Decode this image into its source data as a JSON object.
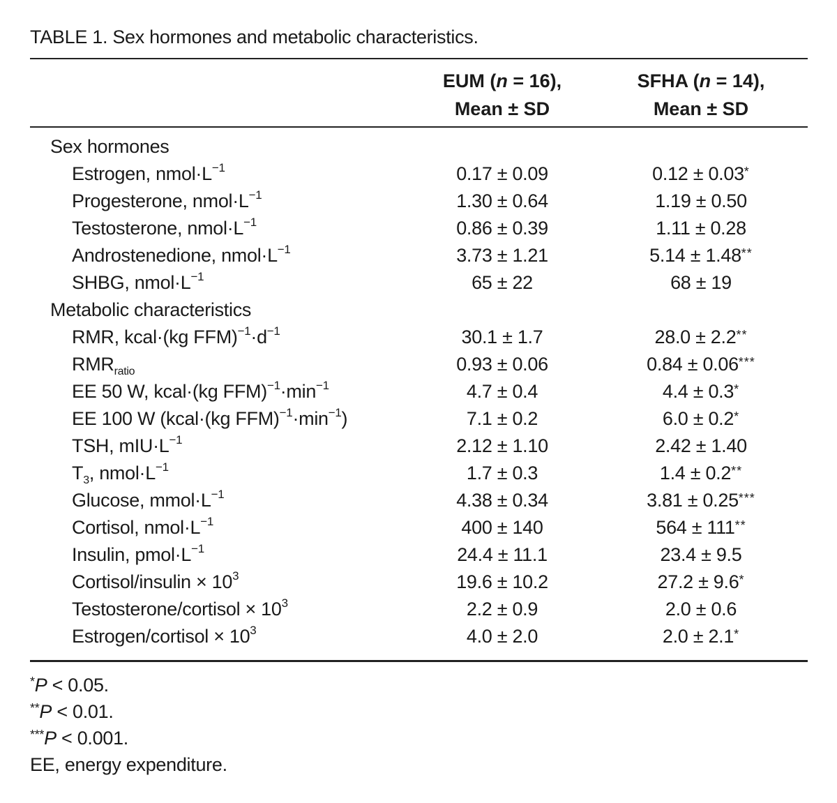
{
  "caption": "TABLE 1. Sex hormones and metabolic characteristics.",
  "columns": {
    "eum_line1_pre": "EUM (",
    "eum_n": "n",
    "eum_line1_post": " = 16),",
    "eum_line2": "Mean ± SD",
    "sfha_line1_pre": "SFHA (",
    "sfha_n": "n",
    "sfha_line1_post": " = 14),",
    "sfha_line2": "Mean ± SD"
  },
  "sections": {
    "sex_hormones": "Sex hormones",
    "metabolic": "Metabolic characteristics"
  },
  "rows": [
    {
      "label": "Estrogen, nmol·L",
      "sup": "−1",
      "eum": "0.17 ± 0.09",
      "sfha": "0.12 ± 0.03",
      "sig": "*"
    },
    {
      "label": "Progesterone, nmol·L",
      "sup": "−1",
      "eum": "1.30 ± 0.64",
      "sfha": "1.19 ± 0.50",
      "sig": ""
    },
    {
      "label": "Testosterone, nmol·L",
      "sup": "−1",
      "eum": "0.86 ± 0.39",
      "sfha": "1.11 ± 0.28",
      "sig": ""
    },
    {
      "label": "Androstenedione, nmol·L",
      "sup": "−1",
      "eum": "3.73 ± 1.21",
      "sfha": "5.14 ± 1.48",
      "sig": "**"
    },
    {
      "label": "SHBG, nmol·L",
      "sup": "−1",
      "eum": "65 ± 22",
      "sfha": "68 ± 19",
      "sig": ""
    },
    {
      "label": "RMR, kcal·(kg FFM)",
      "sup": "−1",
      "label_mid": "·d",
      "sup2": "−1",
      "eum": "30.1 ± 1.7",
      "sfha": "28.0 ± 2.2",
      "sig": "**"
    },
    {
      "label": "RMR",
      "sub": "ratio",
      "eum": "0.93 ± 0.06",
      "sfha": "0.84 ± 0.06",
      "sig": "***"
    },
    {
      "label": "EE 50 W, kcal·(kg FFM)",
      "sup": "−1",
      "label_mid": "·min",
      "sup2": "−1",
      "eum": "4.7 ± 0.4",
      "sfha": "4.4 ± 0.3",
      "sig": "*"
    },
    {
      "label": "EE 100 W (kcal·(kg FFM)",
      "sup": "−1",
      "label_mid": "·min",
      "sup2": "−1",
      "label_end": ")",
      "eum": "7.1 ± 0.2",
      "sfha": "6.0 ± 0.2",
      "sig": "*"
    },
    {
      "label": "TSH, mIU·L",
      "sup": "−1",
      "eum": "2.12 ± 1.10",
      "sfha": "2.42 ± 1.40",
      "sig": ""
    },
    {
      "label": "T",
      "sub": "3",
      "label_mid": ", nmol·L",
      "sup2": "−1",
      "eum": "1.7 ± 0.3",
      "sfha": "1.4 ± 0.2",
      "sig": "**"
    },
    {
      "label": "Glucose, mmol·L",
      "sup": "−1",
      "eum": "4.38 ± 0.34",
      "sfha": "3.81 ± 0.25",
      "sig": "***"
    },
    {
      "label": "Cortisol, nmol·L",
      "sup": "−1",
      "eum": "400 ± 140",
      "sfha": "564 ± 111",
      "sig": "**"
    },
    {
      "label": "Insulin, pmol·L",
      "sup": "−1",
      "eum": "24.4 ± 11.1",
      "sfha": "23.4 ± 9.5",
      "sig": ""
    },
    {
      "label": "Cortisol/insulin × 10",
      "sup": "3",
      "eum": "19.6 ± 10.2",
      "sfha": "27.2 ± 9.6",
      "sig": "*"
    },
    {
      "label": "Testosterone/cortisol × 10",
      "sup": "3",
      "eum": "2.2 ± 0.9",
      "sfha": "2.0 ± 0.6",
      "sig": ""
    },
    {
      "label": "Estrogen/cortisol × 10",
      "sup": "3",
      "eum": "4.0 ± 2.0",
      "sfha": "2.0 ± 2.1",
      "sig": "*"
    }
  ],
  "footnotes": [
    {
      "stars": "*",
      "p": "P",
      "rest": " < 0.05."
    },
    {
      "stars": "**",
      "p": "P",
      "rest": " < 0.01."
    },
    {
      "stars": "***",
      "p": "P",
      "rest": " < 0.001."
    },
    {
      "stars": "",
      "p": "",
      "rest": "EE, energy expenditure."
    }
  ]
}
